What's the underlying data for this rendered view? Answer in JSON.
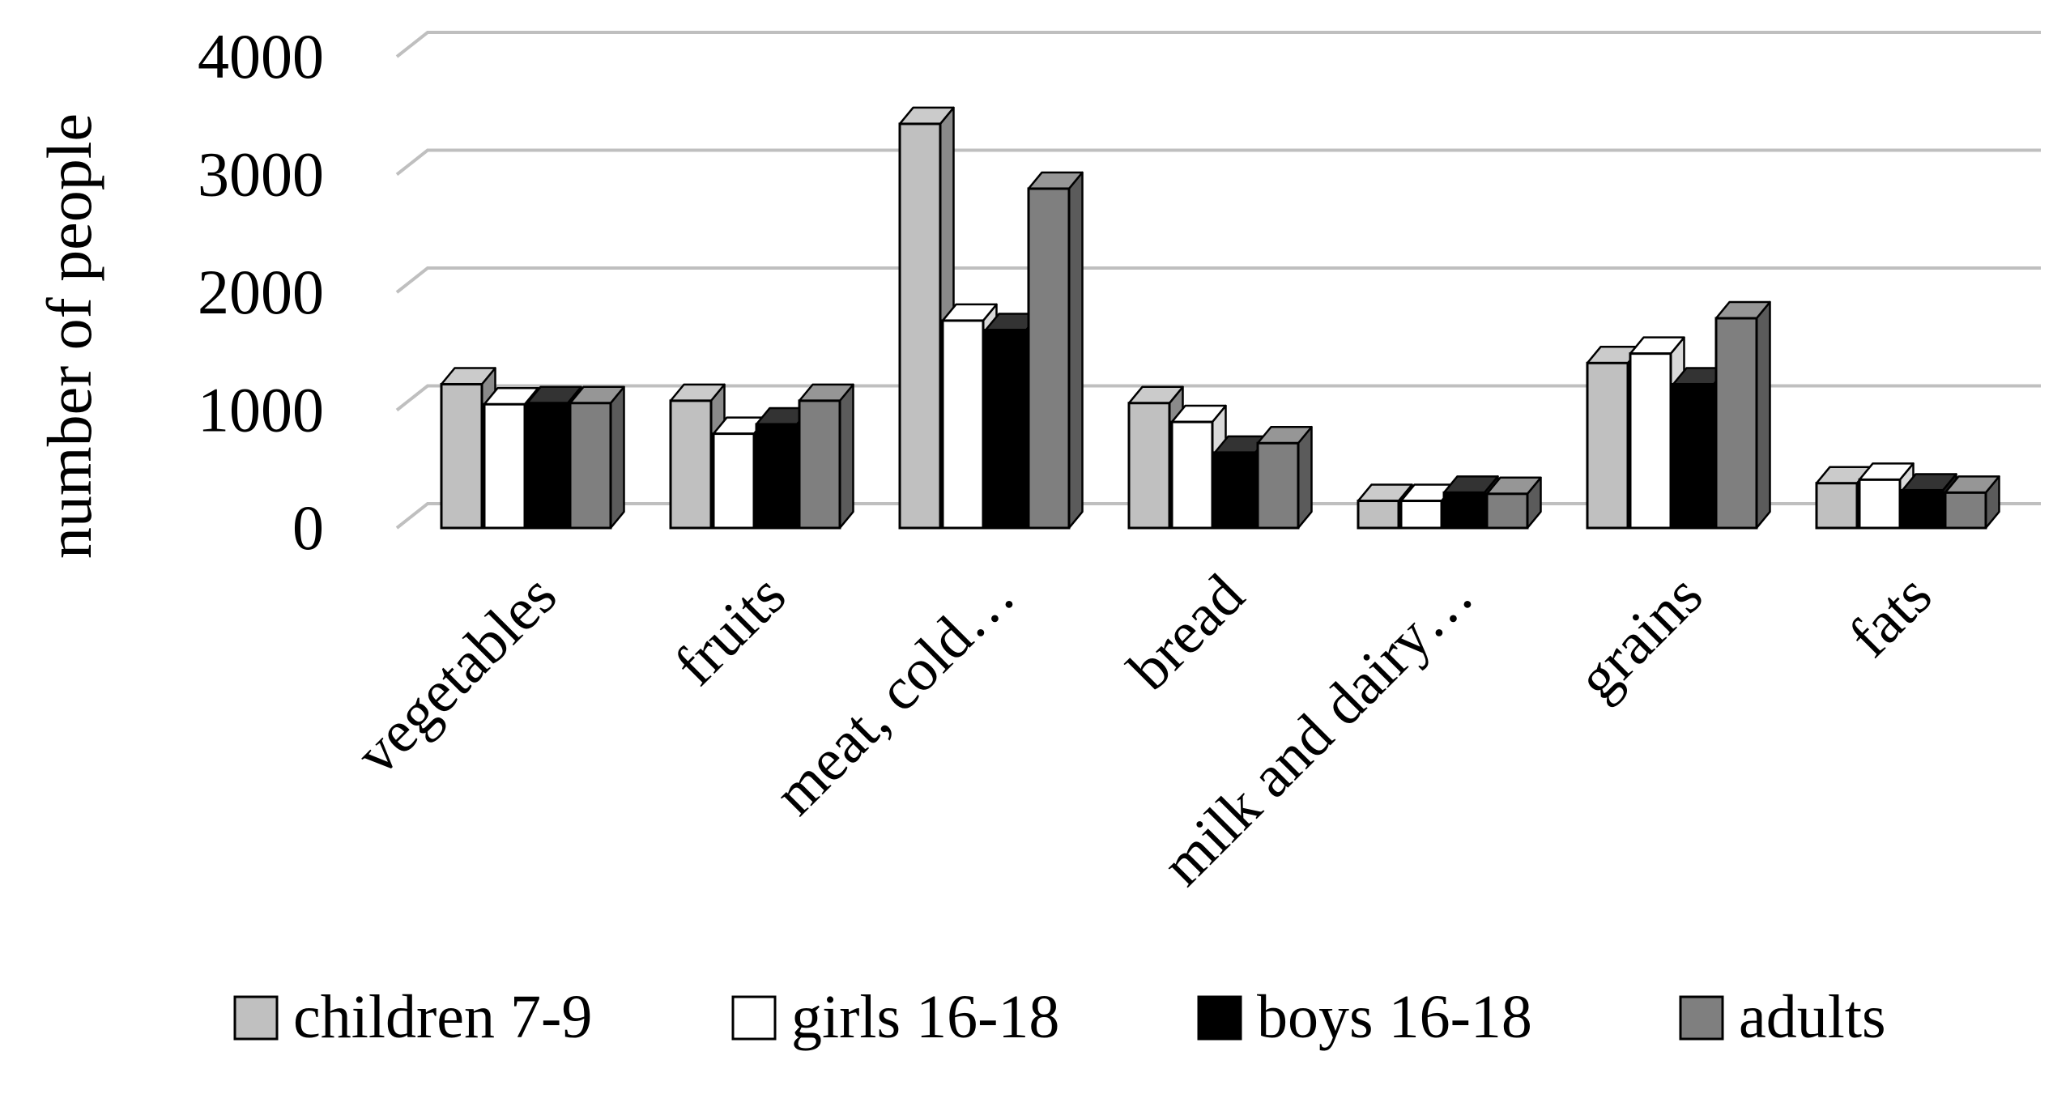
{
  "chart_data": {
    "type": "bar",
    "style": "3d-clustered-column",
    "title": "",
    "xlabel": "",
    "ylabel": "number of people",
    "ylim": [
      0,
      4000
    ],
    "yticks": [
      "0",
      "1000",
      "2000",
      "3000",
      "4000"
    ],
    "grid": true,
    "legend_position": "bottom",
    "categories": [
      "vegetables",
      "fruits",
      "meat, cold…",
      "bread",
      "milk and dairy…",
      "grains",
      "fats"
    ],
    "series": [
      {
        "name": "children 7-9",
        "color": "#c0c0c0",
        "values": [
          1220,
          1080,
          3430,
          1060,
          230,
          1400,
          380
        ]
      },
      {
        "name": "girls 16-18",
        "color": "#ffffff",
        "values": [
          1050,
          800,
          1760,
          900,
          230,
          1480,
          410
        ]
      },
      {
        "name": "boys 16-18",
        "color": "#000000",
        "values": [
          1060,
          880,
          1680,
          640,
          300,
          1220,
          320
        ]
      },
      {
        "name": "adults",
        "color": "#7f7f7f",
        "values": [
          1060,
          1080,
          2880,
          720,
          290,
          1780,
          300
        ]
      }
    ]
  }
}
